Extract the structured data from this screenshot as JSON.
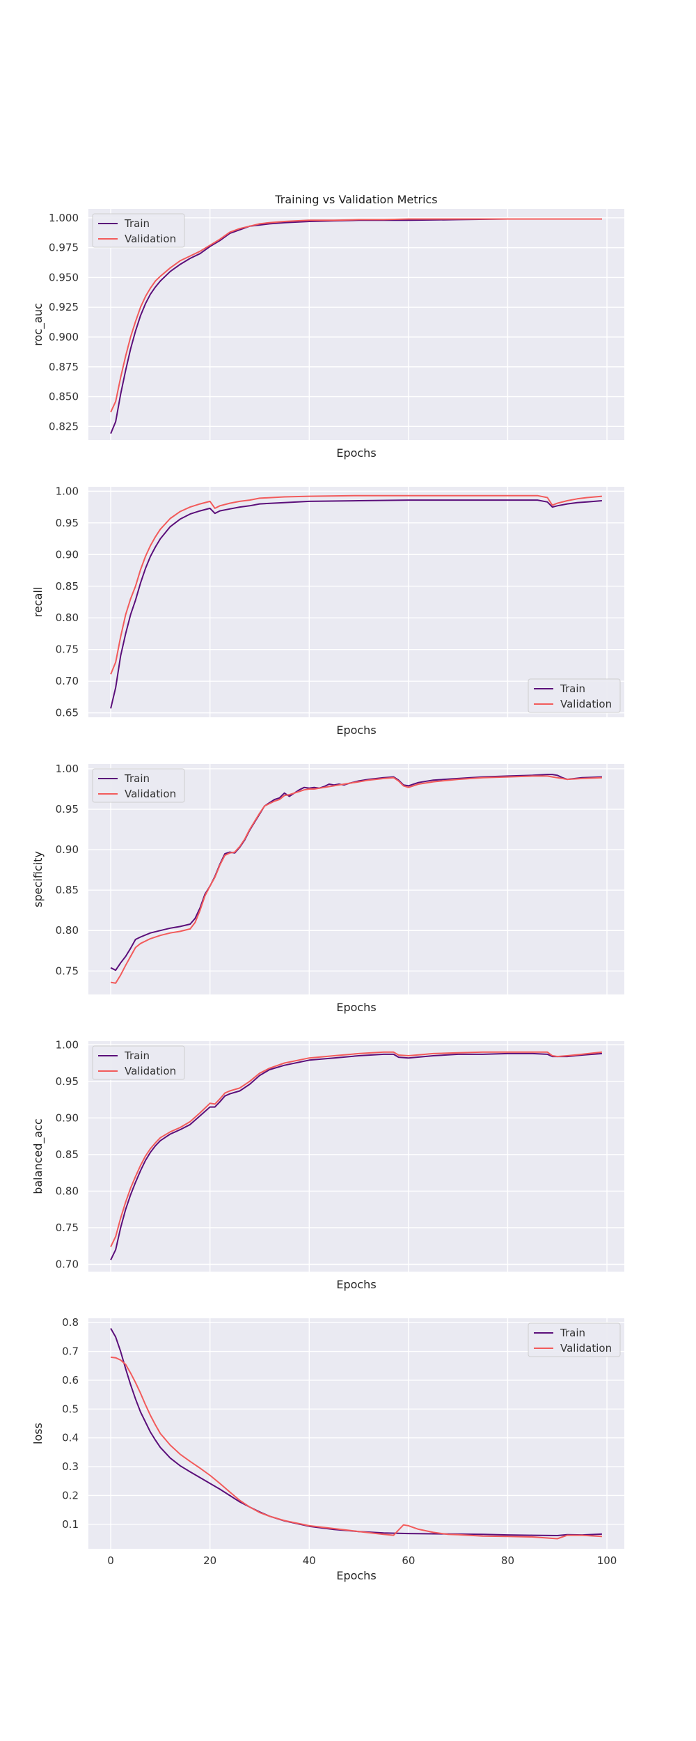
{
  "figure": {
    "title": "Training vs Validation Metrics"
  },
  "colors": {
    "background": "#eaeaf2",
    "grid": "#ffffff",
    "train": "#5b0f7a",
    "validation": "#f25b5b"
  },
  "chart_data": [
    {
      "type": "line",
      "ylabel": "roc_auc",
      "xlabel": "Epochs",
      "xlim": [
        -4.5,
        103.5
      ],
      "ylim": [
        0.8135,
        1.0075
      ],
      "yticks": [
        "0.825",
        "0.850",
        "0.875",
        "0.900",
        "0.925",
        "0.950",
        "0.975",
        "1.000"
      ],
      "xticks": [
        "0",
        "20",
        "40",
        "60",
        "80",
        "100"
      ],
      "legend": "upper left",
      "series": [
        {
          "name": "Train",
          "x": [
            0,
            1,
            2,
            3,
            4,
            5,
            6,
            7,
            8,
            9,
            10,
            12,
            14,
            16,
            18,
            20,
            22,
            24,
            26,
            28,
            30,
            32,
            35,
            40,
            45,
            50,
            55,
            60,
            70,
            80,
            90,
            99
          ],
          "y": [
            0.819,
            0.829,
            0.852,
            0.872,
            0.89,
            0.905,
            0.918,
            0.928,
            0.936,
            0.942,
            0.947,
            0.955,
            0.961,
            0.966,
            0.97,
            0.976,
            0.981,
            0.987,
            0.99,
            0.993,
            0.994,
            0.995,
            0.996,
            0.997,
            0.9975,
            0.998,
            0.998,
            0.998,
            0.9985,
            0.999,
            0.999,
            0.999
          ]
        },
        {
          "name": "Validation",
          "x": [
            0,
            1,
            2,
            3,
            4,
            5,
            6,
            7,
            8,
            9,
            10,
            12,
            14,
            16,
            18,
            20,
            22,
            24,
            26,
            28,
            30,
            32,
            35,
            40,
            45,
            50,
            55,
            60,
            70,
            80,
            90,
            99
          ],
          "y": [
            0.837,
            0.846,
            0.866,
            0.884,
            0.9,
            0.913,
            0.925,
            0.934,
            0.941,
            0.947,
            0.951,
            0.958,
            0.964,
            0.968,
            0.972,
            0.977,
            0.982,
            0.988,
            0.991,
            0.993,
            0.995,
            0.996,
            0.997,
            0.998,
            0.998,
            0.9985,
            0.9985,
            0.999,
            0.999,
            0.999,
            0.999,
            0.999
          ]
        }
      ]
    },
    {
      "type": "line",
      "ylabel": "recall",
      "xlabel": "Epochs",
      "xlim": [
        -4.5,
        103.5
      ],
      "ylim": [
        0.643,
        1.007
      ],
      "yticks": [
        "0.65",
        "0.70",
        "0.75",
        "0.80",
        "0.85",
        "0.90",
        "0.95",
        "1.00"
      ],
      "xticks": [
        "0",
        "20",
        "40",
        "60",
        "80",
        "100"
      ],
      "legend": "lower right",
      "series": [
        {
          "name": "Train",
          "x": [
            0,
            1,
            2,
            3,
            4,
            5,
            6,
            7,
            8,
            9,
            10,
            12,
            14,
            16,
            18,
            20,
            21,
            22,
            24,
            26,
            28,
            30,
            35,
            40,
            50,
            60,
            70,
            80,
            86,
            88,
            89,
            90,
            92,
            94,
            96,
            99
          ],
          "y": [
            0.657,
            0.69,
            0.74,
            0.775,
            0.805,
            0.828,
            0.855,
            0.878,
            0.897,
            0.912,
            0.925,
            0.944,
            0.956,
            0.964,
            0.969,
            0.973,
            0.965,
            0.969,
            0.972,
            0.975,
            0.977,
            0.98,
            0.982,
            0.984,
            0.985,
            0.986,
            0.986,
            0.986,
            0.986,
            0.983,
            0.975,
            0.977,
            0.98,
            0.982,
            0.983,
            0.985
          ]
        },
        {
          "name": "Validation",
          "x": [
            0,
            1,
            2,
            3,
            4,
            5,
            6,
            7,
            8,
            9,
            10,
            12,
            14,
            16,
            18,
            20,
            21,
            22,
            24,
            26,
            28,
            30,
            35,
            40,
            50,
            60,
            70,
            80,
            86,
            88,
            89,
            90,
            92,
            94,
            96,
            99
          ],
          "y": [
            0.711,
            0.73,
            0.77,
            0.805,
            0.83,
            0.85,
            0.876,
            0.897,
            0.914,
            0.928,
            0.94,
            0.957,
            0.968,
            0.975,
            0.98,
            0.984,
            0.973,
            0.977,
            0.981,
            0.984,
            0.986,
            0.989,
            0.991,
            0.992,
            0.993,
            0.993,
            0.993,
            0.993,
            0.993,
            0.99,
            0.978,
            0.981,
            0.985,
            0.988,
            0.99,
            0.992
          ]
        }
      ]
    },
    {
      "type": "line",
      "ylabel": "specificity",
      "xlabel": "Epochs",
      "xlim": [
        -4.5,
        103.5
      ],
      "ylim": [
        0.721,
        1.006
      ],
      "yticks": [
        "0.75",
        "0.80",
        "0.85",
        "0.90",
        "0.95",
        "1.00"
      ],
      "xticks": [
        "0",
        "20",
        "40",
        "60",
        "80",
        "100"
      ],
      "legend": "upper left",
      "series": [
        {
          "name": "Train",
          "x": [
            0,
            1,
            2,
            3,
            4,
            5,
            6,
            8,
            10,
            12,
            14,
            16,
            17,
            18,
            19,
            20,
            21,
            22,
            23,
            24,
            25,
            26,
            27,
            28,
            29,
            30,
            31,
            32,
            33,
            34,
            35,
            36,
            37,
            38,
            39,
            40,
            41,
            42,
            43,
            44,
            45,
            46,
            47,
            48,
            50,
            52,
            55,
            57,
            58,
            59,
            60,
            62,
            65,
            70,
            75,
            80,
            85,
            88,
            89,
            90,
            91,
            92,
            95,
            99
          ],
          "y": [
            0.754,
            0.751,
            0.76,
            0.768,
            0.778,
            0.789,
            0.792,
            0.797,
            0.8,
            0.803,
            0.805,
            0.808,
            0.815,
            0.828,
            0.845,
            0.855,
            0.867,
            0.882,
            0.895,
            0.897,
            0.896,
            0.903,
            0.912,
            0.924,
            0.934,
            0.944,
            0.954,
            0.958,
            0.962,
            0.964,
            0.97,
            0.966,
            0.97,
            0.974,
            0.977,
            0.976,
            0.977,
            0.976,
            0.978,
            0.981,
            0.98,
            0.981,
            0.98,
            0.982,
            0.985,
            0.987,
            0.989,
            0.99,
            0.986,
            0.98,
            0.979,
            0.983,
            0.986,
            0.988,
            0.99,
            0.991,
            0.992,
            0.993,
            0.993,
            0.992,
            0.989,
            0.987,
            0.989,
            0.99
          ]
        },
        {
          "name": "Validation",
          "x": [
            0,
            1,
            2,
            3,
            4,
            5,
            6,
            8,
            10,
            12,
            14,
            16,
            17,
            18,
            19,
            20,
            21,
            22,
            23,
            24,
            25,
            26,
            27,
            28,
            29,
            30,
            31,
            32,
            33,
            34,
            35,
            36,
            37,
            38,
            39,
            40,
            41,
            42,
            43,
            44,
            45,
            46,
            47,
            48,
            50,
            52,
            55,
            57,
            58,
            59,
            60,
            62,
            65,
            70,
            75,
            80,
            85,
            88,
            89,
            90,
            91,
            92,
            95,
            99
          ],
          "y": [
            0.736,
            0.735,
            0.745,
            0.757,
            0.768,
            0.779,
            0.784,
            0.79,
            0.794,
            0.797,
            0.799,
            0.802,
            0.81,
            0.825,
            0.843,
            0.855,
            0.866,
            0.881,
            0.893,
            0.896,
            0.897,
            0.904,
            0.913,
            0.925,
            0.935,
            0.945,
            0.954,
            0.957,
            0.96,
            0.962,
            0.967,
            0.968,
            0.97,
            0.972,
            0.974,
            0.975,
            0.975,
            0.976,
            0.977,
            0.978,
            0.979,
            0.98,
            0.981,
            0.982,
            0.984,
            0.986,
            0.988,
            0.989,
            0.985,
            0.979,
            0.977,
            0.981,
            0.984,
            0.987,
            0.989,
            0.99,
            0.991,
            0.991,
            0.99,
            0.989,
            0.988,
            0.987,
            0.988,
            0.989
          ]
        }
      ]
    },
    {
      "type": "line",
      "ylabel": "balanced_acc",
      "xlabel": "Epochs",
      "xlim": [
        -4.5,
        103.5
      ],
      "ylim": [
        0.69,
        1.005
      ],
      "yticks": [
        "0.70",
        "0.75",
        "0.80",
        "0.85",
        "0.90",
        "0.95",
        "1.00"
      ],
      "xticks": [
        "0",
        "20",
        "40",
        "60",
        "80",
        "100"
      ],
      "legend": "upper left",
      "series": [
        {
          "name": "Train",
          "x": [
            0,
            1,
            2,
            3,
            4,
            5,
            6,
            7,
            8,
            9,
            10,
            12,
            14,
            16,
            18,
            20,
            21,
            22,
            23,
            24,
            26,
            28,
            30,
            32,
            35,
            40,
            45,
            50,
            55,
            57,
            58,
            60,
            65,
            70,
            75,
            80,
            85,
            88,
            89,
            90,
            92,
            95,
            99
          ],
          "y": [
            0.706,
            0.72,
            0.75,
            0.775,
            0.795,
            0.812,
            0.828,
            0.842,
            0.853,
            0.862,
            0.869,
            0.878,
            0.884,
            0.891,
            0.903,
            0.915,
            0.915,
            0.922,
            0.93,
            0.933,
            0.937,
            0.946,
            0.958,
            0.966,
            0.972,
            0.979,
            0.982,
            0.985,
            0.987,
            0.987,
            0.983,
            0.982,
            0.985,
            0.987,
            0.987,
            0.988,
            0.988,
            0.987,
            0.984,
            0.984,
            0.984,
            0.986,
            0.988
          ]
        },
        {
          "name": "Validation",
          "x": [
            0,
            1,
            2,
            3,
            4,
            5,
            6,
            7,
            8,
            9,
            10,
            12,
            14,
            16,
            18,
            20,
            21,
            22,
            23,
            24,
            26,
            28,
            30,
            32,
            35,
            40,
            45,
            50,
            55,
            57,
            58,
            60,
            65,
            70,
            75,
            80,
            85,
            88,
            89,
            90,
            92,
            95,
            99
          ],
          "y": [
            0.724,
            0.738,
            0.763,
            0.785,
            0.804,
            0.82,
            0.835,
            0.848,
            0.858,
            0.866,
            0.873,
            0.881,
            0.887,
            0.895,
            0.907,
            0.92,
            0.919,
            0.926,
            0.934,
            0.937,
            0.941,
            0.95,
            0.961,
            0.968,
            0.975,
            0.982,
            0.985,
            0.988,
            0.99,
            0.99,
            0.986,
            0.985,
            0.988,
            0.989,
            0.99,
            0.99,
            0.99,
            0.99,
            0.985,
            0.984,
            0.985,
            0.987,
            0.99
          ]
        }
      ]
    },
    {
      "type": "line",
      "ylabel": "loss",
      "xlabel": "Epochs",
      "xlim": [
        -4.5,
        103.5
      ],
      "ylim": [
        0.015,
        0.815
      ],
      "yticks": [
        "0.1",
        "0.2",
        "0.3",
        "0.4",
        "0.5",
        "0.6",
        "0.7",
        "0.8"
      ],
      "xticks": [
        "0",
        "20",
        "40",
        "60",
        "80",
        "100"
      ],
      "legend": "upper right",
      "series": [
        {
          "name": "Train",
          "x": [
            0,
            1,
            2,
            3,
            4,
            5,
            6,
            7,
            8,
            9,
            10,
            12,
            14,
            16,
            18,
            20,
            22,
            24,
            26,
            28,
            30,
            32,
            35,
            40,
            45,
            50,
            55,
            60,
            65,
            70,
            75,
            80,
            85,
            90,
            92,
            95,
            99
          ],
          "y": [
            0.78,
            0.75,
            0.7,
            0.64,
            0.585,
            0.535,
            0.49,
            0.455,
            0.42,
            0.392,
            0.367,
            0.33,
            0.303,
            0.282,
            0.262,
            0.242,
            0.222,
            0.2,
            0.178,
            0.16,
            0.143,
            0.128,
            0.112,
            0.093,
            0.082,
            0.075,
            0.07,
            0.068,
            0.067,
            0.066,
            0.065,
            0.063,
            0.062,
            0.061,
            0.064,
            0.063,
            0.066
          ]
        },
        {
          "name": "Validation",
          "x": [
            0,
            1,
            2,
            3,
            4,
            5,
            6,
            7,
            8,
            9,
            10,
            12,
            14,
            16,
            18,
            20,
            22,
            24,
            26,
            28,
            30,
            32,
            35,
            40,
            45,
            50,
            55,
            57,
            58,
            59,
            60,
            62,
            65,
            68,
            70,
            75,
            80,
            85,
            90,
            92,
            95,
            99
          ],
          "y": [
            0.68,
            0.678,
            0.67,
            0.655,
            0.625,
            0.592,
            0.555,
            0.515,
            0.478,
            0.445,
            0.415,
            0.375,
            0.343,
            0.318,
            0.295,
            0.27,
            0.242,
            0.212,
            0.183,
            0.16,
            0.141,
            0.128,
            0.113,
            0.095,
            0.085,
            0.075,
            0.065,
            0.062,
            0.08,
            0.098,
            0.095,
            0.083,
            0.072,
            0.065,
            0.064,
            0.059,
            0.058,
            0.056,
            0.05,
            0.062,
            0.062,
            0.058
          ]
        }
      ]
    }
  ]
}
